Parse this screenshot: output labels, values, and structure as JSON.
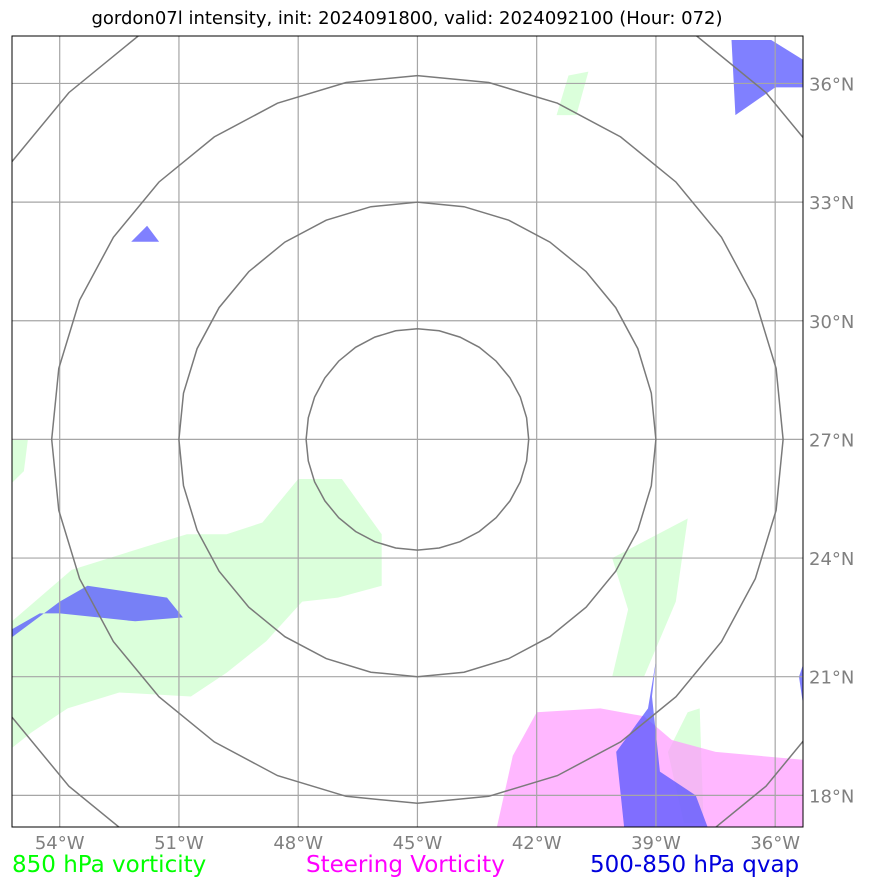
{
  "title": "gordon07l intensity, init: 2024091800, valid: 2024092100 (Hour: 072)",
  "legend": {
    "vort850": {
      "label": "850 hPa vorticity",
      "color": "#00ff00"
    },
    "steering": {
      "label": "Steering Vorticity",
      "color": "#ff00ff"
    },
    "qvap": {
      "label": "500-850 hPa qvap",
      "color": "#0000dd"
    }
  },
  "chart_data": {
    "type": "map",
    "title": "gordon07l intensity, init: 2024091800, valid: 2024092100 (Hour: 072)",
    "lon_range": [
      -55.2,
      -35.3
    ],
    "lat_range": [
      17.2,
      37.2
    ],
    "x_ticks": [
      {
        "value": -54,
        "label": "54°W"
      },
      {
        "value": -51,
        "label": "51°W"
      },
      {
        "value": -48,
        "label": "48°W"
      },
      {
        "value": -45,
        "label": "45°W"
      },
      {
        "value": -42,
        "label": "42°W"
      },
      {
        "value": -39,
        "label": "39°W"
      },
      {
        "value": -36,
        "label": "36°W"
      }
    ],
    "y_ticks": [
      {
        "value": 36,
        "label": "36°N"
      },
      {
        "value": 33,
        "label": "33°N"
      },
      {
        "value": 30,
        "label": "30°N"
      },
      {
        "value": 27,
        "label": "27°N"
      },
      {
        "value": 24,
        "label": "24°N"
      },
      {
        "value": 21,
        "label": "21°N"
      },
      {
        "value": 18,
        "label": "18°N"
      }
    ],
    "grid": true,
    "range_rings_center": [
      -45,
      27
    ],
    "range_rings_radius_deg": [
      2.8,
      6.0,
      9.2,
      12.4
    ],
    "fields": [
      {
        "name": "850 hPa vorticity",
        "color": "#ccffcc",
        "polygons": [
          [
            [
              -55.2,
              19.2
            ],
            [
              -54.7,
              19.6
            ],
            [
              -53.8,
              20.2
            ],
            [
              -52.5,
              20.6
            ],
            [
              -50.7,
              20.5
            ],
            [
              -49.8,
              21.1
            ],
            [
              -48.8,
              21.9
            ],
            [
              -47.9,
              22.9
            ],
            [
              -47.0,
              23.0
            ],
            [
              -45.9,
              23.3
            ],
            [
              -45.9,
              24.6
            ],
            [
              -46.9,
              26.0
            ],
            [
              -48.0,
              26.0
            ],
            [
              -48.9,
              24.9
            ],
            [
              -49.8,
              24.6
            ],
            [
              -50.8,
              24.6
            ],
            [
              -51.8,
              24.3
            ],
            [
              -53.7,
              23.7
            ],
            [
              -55.2,
              22.4
            ]
          ],
          [
            [
              -55.2,
              25.9
            ],
            [
              -54.9,
              26.2
            ],
            [
              -54.8,
              27.0
            ],
            [
              -55.2,
              27.0
            ]
          ],
          [
            [
              -41.0,
              35.2
            ],
            [
              -40.7,
              36.3
            ],
            [
              -41.2,
              36.2
            ],
            [
              -41.5,
              35.2
            ]
          ],
          [
            [
              -40.1,
              21.0
            ],
            [
              -39.3,
              21.0
            ],
            [
              -38.5,
              22.9
            ],
            [
              -38.2,
              25.0
            ],
            [
              -40.1,
              24.0
            ],
            [
              -39.7,
              22.7
            ]
          ],
          [
            [
              -38.3,
              17.3
            ],
            [
              -37.8,
              17.3
            ],
            [
              -37.9,
              20.2
            ],
            [
              -38.2,
              20.1
            ],
            [
              -38.7,
              19.1
            ]
          ]
        ]
      },
      {
        "name": "Steering Vorticity",
        "color": "#ff99ff",
        "polygons": [
          [
            [
              -43.0,
              17.2
            ],
            [
              -35.3,
              17.2
            ],
            [
              -35.3,
              18.9
            ],
            [
              -37.5,
              19.1
            ],
            [
              -38.6,
              19.4
            ],
            [
              -39.3,
              20.0
            ],
            [
              -40.4,
              20.2
            ],
            [
              -42.0,
              20.1
            ],
            [
              -42.6,
              19.0
            ]
          ]
        ]
      },
      {
        "name": "500-850 hPa qvap",
        "color": "#5555ff",
        "polygons": [
          [
            [
              -55.2,
              22.2
            ],
            [
              -54.5,
              22.6
            ],
            [
              -54.0,
              22.6
            ],
            [
              -52.1,
              22.4
            ],
            [
              -50.9,
              22.5
            ],
            [
              -51.3,
              23.0
            ],
            [
              -53.3,
              23.3
            ],
            [
              -54.0,
              22.9
            ],
            [
              -55.2,
              22.0
            ]
          ],
          [
            [
              -37.0,
              35.2
            ],
            [
              -36.0,
              35.9
            ],
            [
              -35.3,
              35.9
            ],
            [
              -35.3,
              36.6
            ],
            [
              -36.1,
              37.1
            ],
            [
              -37.1,
              37.1
            ]
          ],
          [
            [
              -51.5,
              32.0
            ],
            [
              -52.2,
              32.0
            ],
            [
              -51.8,
              32.4
            ]
          ],
          [
            [
              -39.8,
              17.2
            ],
            [
              -37.7,
              17.2
            ],
            [
              -38.0,
              18.0
            ],
            [
              -38.9,
              18.6
            ],
            [
              -39.1,
              20.5
            ],
            [
              -39.0,
              21.4
            ],
            [
              -39.2,
              20.2
            ],
            [
              -40.0,
              19.1
            ]
          ],
          [
            [
              -35.3,
              20.3
            ],
            [
              -35.4,
              21.0
            ],
            [
              -35.3,
              21.3
            ]
          ]
        ]
      }
    ]
  }
}
